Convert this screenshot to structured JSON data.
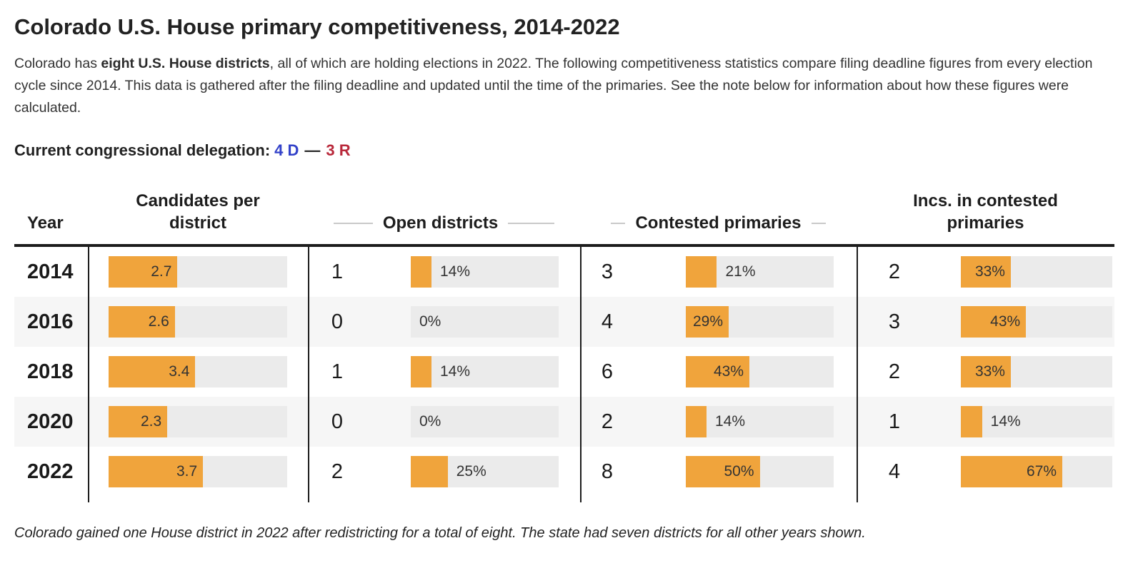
{
  "page": {
    "title": "Colorado U.S. House primary competitiveness, 2014-2022",
    "intro": {
      "pre_bold": "Colorado has ",
      "bold": "eight U.S. House districts",
      "post_bold": ", all of which are holding elections in 2022. The following competitiveness statistics compare filing deadline figures from every election cycle since 2014. This data is gathered after the filing deadline and updated until the time of the primaries. See the note below for information about how these figures were calculated."
    },
    "delegation": {
      "label": "Current congressional delegation:",
      "dem": "4 D",
      "separator": "—",
      "rep": "3 R",
      "dem_color": "#3342C9",
      "rep_color": "#B9293B"
    },
    "footnote": "Colorado gained one House district in 2022 after redistricting for a total of eight. The state had seven districts for all other years shown."
  },
  "chart_data": {
    "type": "table",
    "title": "Colorado U.S. House primary competitiveness, 2014-2022",
    "columns": {
      "year": "Year",
      "candidates": "Candidates per\ndistrict",
      "open": "Open districts",
      "contested": "Contested primaries",
      "incs": "Incs. in contested\nprimaries"
    },
    "candidates_axis_max": 7,
    "colors": {
      "bar_fill": "#F0A43C",
      "bar_track": "#EBEBEB",
      "row_stripe": "#F6F6F6"
    },
    "rows": [
      {
        "year": "2014",
        "candidates": {
          "value": 2.7,
          "label": "2.7"
        },
        "open": {
          "count": "1",
          "pct": 14,
          "label": "14%"
        },
        "contested": {
          "count": "3",
          "pct": 21,
          "label": "21%"
        },
        "incs": {
          "count": "2",
          "pct": 33,
          "label": "33%"
        }
      },
      {
        "year": "2016",
        "candidates": {
          "value": 2.6,
          "label": "2.6"
        },
        "open": {
          "count": "0",
          "pct": 0,
          "label": "0%"
        },
        "contested": {
          "count": "4",
          "pct": 29,
          "label": "29%"
        },
        "incs": {
          "count": "3",
          "pct": 43,
          "label": "43%"
        }
      },
      {
        "year": "2018",
        "candidates": {
          "value": 3.4,
          "label": "3.4"
        },
        "open": {
          "count": "1",
          "pct": 14,
          "label": "14%"
        },
        "contested": {
          "count": "6",
          "pct": 43,
          "label": "43%"
        },
        "incs": {
          "count": "2",
          "pct": 33,
          "label": "33%"
        }
      },
      {
        "year": "2020",
        "candidates": {
          "value": 2.3,
          "label": "2.3"
        },
        "open": {
          "count": "0",
          "pct": 0,
          "label": "0%"
        },
        "contested": {
          "count": "2",
          "pct": 14,
          "label": "14%"
        },
        "incs": {
          "count": "1",
          "pct": 14,
          "label": "14%"
        }
      },
      {
        "year": "2022",
        "candidates": {
          "value": 3.7,
          "label": "3.7"
        },
        "open": {
          "count": "2",
          "pct": 25,
          "label": "25%"
        },
        "contested": {
          "count": "8",
          "pct": 50,
          "label": "50%"
        },
        "incs": {
          "count": "4",
          "pct": 67,
          "label": "67%"
        }
      }
    ]
  }
}
